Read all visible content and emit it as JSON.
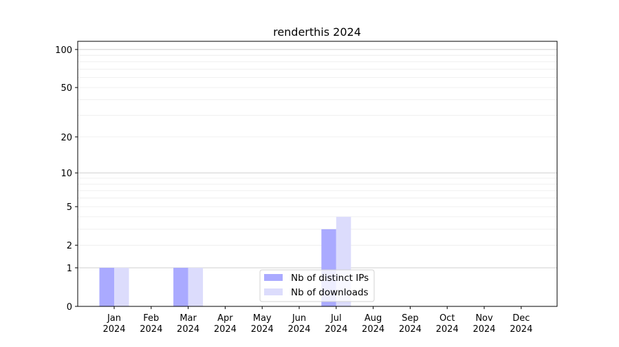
{
  "chart_data": {
    "type": "bar",
    "title": "renderthis 2024",
    "xlabel": "",
    "ylabel": "",
    "yscale": "log(1+y)",
    "ylim": [
      0,
      116
    ],
    "yticks": [
      0,
      1,
      2,
      5,
      10,
      20,
      50,
      100
    ],
    "grid": true,
    "legend_position": "bottom-center",
    "categories": [
      "Jan\n2024",
      "Feb\n2024",
      "Mar\n2024",
      "Apr\n2024",
      "May\n2024",
      "Jun\n2024",
      "Jul\n2024",
      "Aug\n2024",
      "Sep\n2024",
      "Oct\n2024",
      "Nov\n2024",
      "Dec\n2024"
    ],
    "series": [
      {
        "name": "Nb of distinct IPs",
        "color": "#aaaaff",
        "values": [
          1,
          0,
          1,
          0,
          0,
          0,
          3,
          0,
          0,
          0,
          0,
          0
        ]
      },
      {
        "name": "Nb of downloads",
        "color": "#dcdcfc",
        "values": [
          1,
          0,
          1,
          0,
          0,
          0,
          4,
          0,
          0,
          0,
          0,
          0
        ]
      }
    ]
  }
}
